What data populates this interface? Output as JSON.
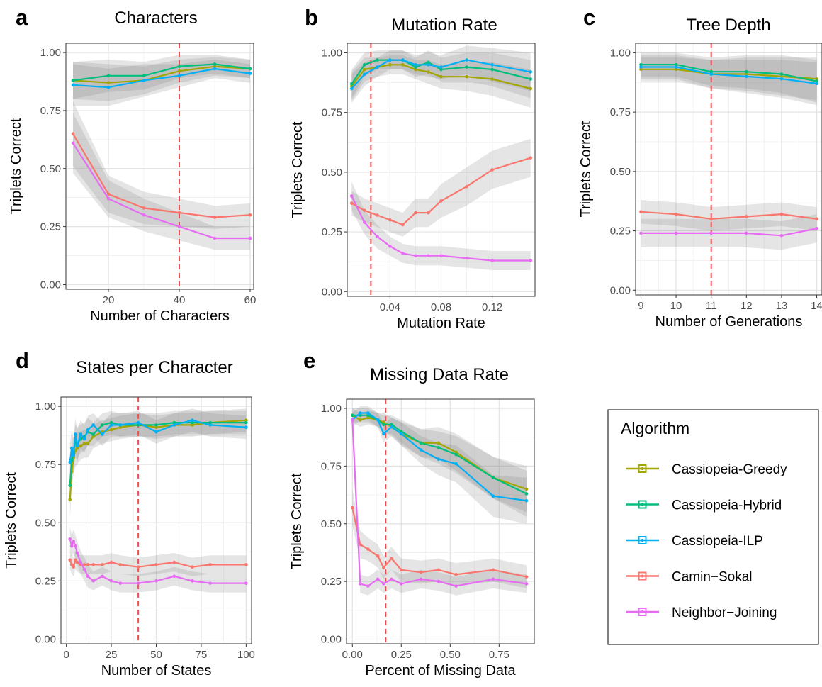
{
  "legend": {
    "title": "Algorithm",
    "entries": [
      {
        "name": "Cassiopeia-Greedy",
        "color": "#A3A500"
      },
      {
        "name": "Cassiopeia-Hybrid",
        "color": "#00BF7D"
      },
      {
        "name": "Cassiopeia-ILP",
        "color": "#00B0F6"
      },
      {
        "name": "Camin−Sokal",
        "color": "#F8766D"
      },
      {
        "name": "Neighbor−Joining",
        "color": "#E76BF3"
      }
    ]
  },
  "chart_data": [
    {
      "letter": "a",
      "type": "line",
      "title": "Characters",
      "xlabel": "Number of Characters",
      "ylabel": "Triplets Correct",
      "xlim": [
        8,
        61
      ],
      "ylim": [
        -0.02,
        1.04
      ],
      "xticks": [
        20,
        40,
        60
      ],
      "xtick_labels": [
        "20",
        "40",
        "60"
      ],
      "yticks": [
        0,
        0.25,
        0.5,
        0.75,
        1.0
      ],
      "ytick_labels": [
        "0.00",
        "0.25",
        "0.50",
        "0.75",
        "1.00"
      ],
      "reference_line_x": 40,
      "x": [
        10,
        20,
        30,
        40,
        50,
        60
      ],
      "series": [
        {
          "name": "Cassiopeia-Greedy",
          "values": [
            0.88,
            0.87,
            0.88,
            0.92,
            0.94,
            0.93
          ],
          "band": [
            0.08,
            0.08,
            0.06,
            0.05,
            0.04,
            0.04
          ]
        },
        {
          "name": "Cassiopeia-Hybrid",
          "values": [
            0.88,
            0.9,
            0.9,
            0.94,
            0.95,
            0.93
          ],
          "band": [
            0.08,
            0.07,
            0.06,
            0.05,
            0.04,
            0.04
          ]
        },
        {
          "name": "Cassiopeia-ILP",
          "values": [
            0.86,
            0.85,
            0.88,
            0.9,
            0.93,
            0.91
          ],
          "band": [
            0.09,
            0.08,
            0.07,
            0.05,
            0.04,
            0.04
          ]
        },
        {
          "name": "Camin−Sokal",
          "values": [
            0.65,
            0.39,
            0.33,
            0.31,
            0.29,
            0.3
          ],
          "band": [
            0.14,
            0.08,
            0.07,
            0.06,
            0.05,
            0.05
          ]
        },
        {
          "name": "Neighbor−Joining",
          "values": [
            0.61,
            0.37,
            0.3,
            0.25,
            0.2,
            0.2
          ],
          "band": [
            0.13,
            0.08,
            0.07,
            0.06,
            0.05,
            0.05
          ]
        }
      ]
    },
    {
      "letter": "b",
      "type": "line",
      "title": "Mutation Rate",
      "xlabel": "Mutation Rate",
      "ylabel": "Triplets Correct",
      "xlim": [
        0.0065,
        0.1535
      ],
      "ylim": [
        -0.02,
        1.04
      ],
      "xticks": [
        0.04,
        0.08,
        0.12
      ],
      "xtick_labels": [
        "0.04",
        "0.08",
        "0.12"
      ],
      "yticks": [
        0,
        0.25,
        0.5,
        0.75,
        1.0
      ],
      "ytick_labels": [
        "0.00",
        "0.25",
        "0.50",
        "0.75",
        "1.00"
      ],
      "reference_line_x": 0.025,
      "x": [
        0.01,
        0.02,
        0.03,
        0.04,
        0.05,
        0.06,
        0.07,
        0.08,
        0.1,
        0.12,
        0.15
      ],
      "series": [
        {
          "name": "Cassiopeia-Greedy",
          "values": [
            0.86,
            0.93,
            0.94,
            0.95,
            0.95,
            0.93,
            0.92,
            0.9,
            0.9,
            0.89,
            0.85
          ],
          "band": [
            0.06,
            0.05,
            0.04,
            0.04,
            0.04,
            0.04,
            0.05,
            0.05,
            0.06,
            0.07,
            0.08
          ]
        },
        {
          "name": "Cassiopeia-Hybrid",
          "values": [
            0.87,
            0.95,
            0.97,
            0.97,
            0.97,
            0.94,
            0.96,
            0.93,
            0.94,
            0.93,
            0.89
          ],
          "band": [
            0.06,
            0.05,
            0.04,
            0.04,
            0.04,
            0.04,
            0.05,
            0.05,
            0.06,
            0.07,
            0.08
          ]
        },
        {
          "name": "Cassiopeia-ILP",
          "values": [
            0.85,
            0.91,
            0.94,
            0.97,
            0.97,
            0.95,
            0.95,
            0.94,
            0.97,
            0.95,
            0.92
          ],
          "band": [
            0.06,
            0.05,
            0.04,
            0.04,
            0.04,
            0.04,
            0.05,
            0.05,
            0.06,
            0.07,
            0.08
          ]
        },
        {
          "name": "Camin−Sokal",
          "values": [
            0.37,
            0.34,
            0.32,
            0.3,
            0.28,
            0.33,
            0.33,
            0.38,
            0.44,
            0.51,
            0.56
          ],
          "band": [
            0.05,
            0.05,
            0.05,
            0.05,
            0.05,
            0.06,
            0.06,
            0.07,
            0.08,
            0.08,
            0.08
          ]
        },
        {
          "name": "Neighbor−Joining",
          "values": [
            0.4,
            0.29,
            0.23,
            0.19,
            0.16,
            0.15,
            0.15,
            0.15,
            0.14,
            0.13,
            0.13
          ],
          "band": [
            0.06,
            0.05,
            0.05,
            0.04,
            0.04,
            0.04,
            0.04,
            0.04,
            0.04,
            0.04,
            0.04
          ]
        }
      ]
    },
    {
      "letter": "c",
      "type": "line",
      "title": "Tree Depth",
      "xlabel": "Number of Generations",
      "ylabel": "Triplets Correct",
      "xlim": [
        8.85,
        14.15
      ],
      "ylim": [
        -0.02,
        1.04
      ],
      "xticks": [
        9,
        10,
        11,
        12,
        13,
        14
      ],
      "xtick_labels": [
        "9",
        "10",
        "11",
        "12",
        "13",
        "14"
      ],
      "yticks": [
        0,
        0.25,
        0.5,
        0.75,
        1.0
      ],
      "ytick_labels": [
        "0.00",
        "0.25",
        "0.50",
        "0.75",
        "1.00"
      ],
      "reference_line_x": 11,
      "x": [
        9,
        10,
        11,
        12,
        13,
        14
      ],
      "series": [
        {
          "name": "Cassiopeia-Greedy",
          "values": [
            0.93,
            0.93,
            0.91,
            0.91,
            0.9,
            0.89
          ],
          "band": [
            0.05,
            0.05,
            0.06,
            0.07,
            0.08,
            0.09
          ]
        },
        {
          "name": "Cassiopeia-Hybrid",
          "values": [
            0.95,
            0.95,
            0.92,
            0.92,
            0.91,
            0.88
          ],
          "band": [
            0.05,
            0.05,
            0.06,
            0.07,
            0.08,
            0.09
          ]
        },
        {
          "name": "Cassiopeia-ILP",
          "values": [
            0.94,
            0.94,
            0.91,
            0.9,
            0.89,
            0.87
          ],
          "band": [
            0.05,
            0.05,
            0.06,
            0.07,
            0.08,
            0.09
          ]
        },
        {
          "name": "Camin−Sokal",
          "values": [
            0.33,
            0.32,
            0.3,
            0.31,
            0.32,
            0.3
          ],
          "band": [
            0.05,
            0.05,
            0.05,
            0.05,
            0.05,
            0.05
          ]
        },
        {
          "name": "Neighbor−Joining",
          "values": [
            0.24,
            0.24,
            0.24,
            0.24,
            0.23,
            0.26
          ],
          "band": [
            0.06,
            0.06,
            0.06,
            0.06,
            0.06,
            0.06
          ]
        }
      ]
    },
    {
      "letter": "d",
      "type": "line",
      "title": "States per Character",
      "xlabel": "Number of States",
      "ylabel": "Triplets Correct",
      "xlim": [
        -3,
        103
      ],
      "ylim": [
        -0.02,
        1.04
      ],
      "xticks": [
        0,
        25,
        50,
        75,
        100
      ],
      "xtick_labels": [
        "0",
        "25",
        "50",
        "75",
        "100"
      ],
      "yticks": [
        0,
        0.25,
        0.5,
        0.75,
        1.0
      ],
      "ytick_labels": [
        "0.00",
        "0.25",
        "0.50",
        "0.75",
        "1.00"
      ],
      "reference_line_x": 40,
      "x": [
        2,
        3,
        4,
        5,
        6,
        8,
        10,
        12,
        15,
        20,
        25,
        30,
        40,
        50,
        60,
        70,
        80,
        100
      ],
      "series": [
        {
          "name": "Cassiopeia-Greedy",
          "values": [
            0.6,
            0.72,
            0.78,
            0.81,
            0.82,
            0.83,
            0.84,
            0.84,
            0.87,
            0.89,
            0.9,
            0.91,
            0.92,
            0.91,
            0.92,
            0.92,
            0.93,
            0.94
          ],
          "band": [
            0.08,
            0.08,
            0.07,
            0.07,
            0.07,
            0.06,
            0.06,
            0.06,
            0.05,
            0.05,
            0.05,
            0.05,
            0.05,
            0.05,
            0.05,
            0.05,
            0.05,
            0.05
          ]
        },
        {
          "name": "Cassiopeia-Hybrid",
          "values": [
            0.66,
            0.77,
            0.8,
            0.85,
            0.84,
            0.86,
            0.87,
            0.89,
            0.88,
            0.92,
            0.93,
            0.92,
            0.92,
            0.92,
            0.93,
            0.93,
            0.93,
            0.93
          ],
          "band": [
            0.08,
            0.08,
            0.07,
            0.07,
            0.07,
            0.06,
            0.06,
            0.06,
            0.05,
            0.05,
            0.05,
            0.05,
            0.05,
            0.05,
            0.05,
            0.05,
            0.05,
            0.05
          ]
        },
        {
          "name": "Cassiopeia-ILP",
          "values": [
            0.76,
            0.82,
            0.79,
            0.88,
            0.83,
            0.88,
            0.86,
            0.9,
            0.92,
            0.88,
            0.92,
            0.92,
            0.93,
            0.89,
            0.92,
            0.94,
            0.92,
            0.91
          ],
          "band": [
            0.08,
            0.08,
            0.07,
            0.07,
            0.07,
            0.06,
            0.06,
            0.06,
            0.05,
            0.05,
            0.05,
            0.05,
            0.05,
            0.05,
            0.05,
            0.05,
            0.05,
            0.05
          ]
        },
        {
          "name": "Camin−Sokal",
          "values": [
            0.34,
            0.32,
            0.31,
            0.34,
            0.33,
            0.32,
            0.32,
            0.32,
            0.32,
            0.32,
            0.33,
            0.32,
            0.31,
            0.32,
            0.33,
            0.31,
            0.32,
            0.32
          ],
          "band": [
            0.04,
            0.04,
            0.04,
            0.04,
            0.04,
            0.04,
            0.04,
            0.04,
            0.04,
            0.04,
            0.04,
            0.04,
            0.04,
            0.04,
            0.04,
            0.04,
            0.04,
            0.04
          ]
        },
        {
          "name": "Neighbor−Joining",
          "values": [
            0.43,
            0.4,
            0.42,
            0.4,
            0.37,
            0.33,
            0.3,
            0.27,
            0.25,
            0.27,
            0.25,
            0.24,
            0.24,
            0.25,
            0.27,
            0.25,
            0.24,
            0.24
          ],
          "band": [
            0.05,
            0.05,
            0.05,
            0.05,
            0.05,
            0.05,
            0.05,
            0.05,
            0.04,
            0.04,
            0.04,
            0.04,
            0.04,
            0.04,
            0.04,
            0.04,
            0.04,
            0.04
          ]
        }
      ]
    },
    {
      "letter": "e",
      "type": "line",
      "title": "Missing Data Rate",
      "xlabel": "Percent of Missing Data",
      "ylabel": "Triplets Correct",
      "xlim": [
        -0.03,
        0.93
      ],
      "ylim": [
        -0.02,
        1.04
      ],
      "xticks": [
        0,
        0.25,
        0.5,
        0.75
      ],
      "xtick_labels": [
        "0.00",
        "0.25",
        "0.50",
        "0.75"
      ],
      "yticks": [
        0,
        0.25,
        0.5,
        0.75,
        1.0
      ],
      "ytick_labels": [
        "0.00",
        "0.25",
        "0.50",
        "0.75",
        "1.00"
      ],
      "reference_line_x": 0.17,
      "x": [
        0.0,
        0.04,
        0.08,
        0.13,
        0.16,
        0.2,
        0.25,
        0.35,
        0.44,
        0.53,
        0.72,
        0.89
      ],
      "series": [
        {
          "name": "Cassiopeia-Greedy",
          "values": [
            0.97,
            0.95,
            0.96,
            0.95,
            0.94,
            0.92,
            0.89,
            0.85,
            0.85,
            0.81,
            0.7,
            0.65
          ],
          "band": [
            0.03,
            0.03,
            0.03,
            0.03,
            0.04,
            0.04,
            0.05,
            0.06,
            0.07,
            0.08,
            0.09,
            0.1
          ]
        },
        {
          "name": "Cassiopeia-Hybrid",
          "values": [
            0.97,
            0.97,
            0.97,
            0.95,
            0.93,
            0.93,
            0.9,
            0.85,
            0.83,
            0.8,
            0.7,
            0.63
          ],
          "band": [
            0.03,
            0.03,
            0.03,
            0.03,
            0.04,
            0.04,
            0.05,
            0.06,
            0.07,
            0.08,
            0.09,
            0.1
          ]
        },
        {
          "name": "Cassiopeia-ILP",
          "values": [
            0.95,
            0.98,
            0.98,
            0.95,
            0.89,
            0.92,
            0.89,
            0.82,
            0.78,
            0.76,
            0.62,
            0.6
          ],
          "band": [
            0.03,
            0.03,
            0.03,
            0.03,
            0.04,
            0.04,
            0.05,
            0.06,
            0.07,
            0.08,
            0.09,
            0.1
          ]
        },
        {
          "name": "Camin−Sokal",
          "values": [
            0.57,
            0.41,
            0.39,
            0.36,
            0.31,
            0.35,
            0.3,
            0.29,
            0.3,
            0.28,
            0.3,
            0.27
          ],
          "band": [
            0.08,
            0.06,
            0.05,
            0.05,
            0.05,
            0.05,
            0.05,
            0.05,
            0.05,
            0.05,
            0.05,
            0.05
          ]
        },
        {
          "name": "Neighbor−Joining",
          "values": [
            0.95,
            0.24,
            0.23,
            0.26,
            0.24,
            0.26,
            0.24,
            0.26,
            0.25,
            0.23,
            0.26,
            0.24
          ],
          "band": [
            0.03,
            0.04,
            0.04,
            0.04,
            0.04,
            0.04,
            0.04,
            0.04,
            0.04,
            0.04,
            0.04,
            0.04
          ]
        }
      ]
    }
  ]
}
